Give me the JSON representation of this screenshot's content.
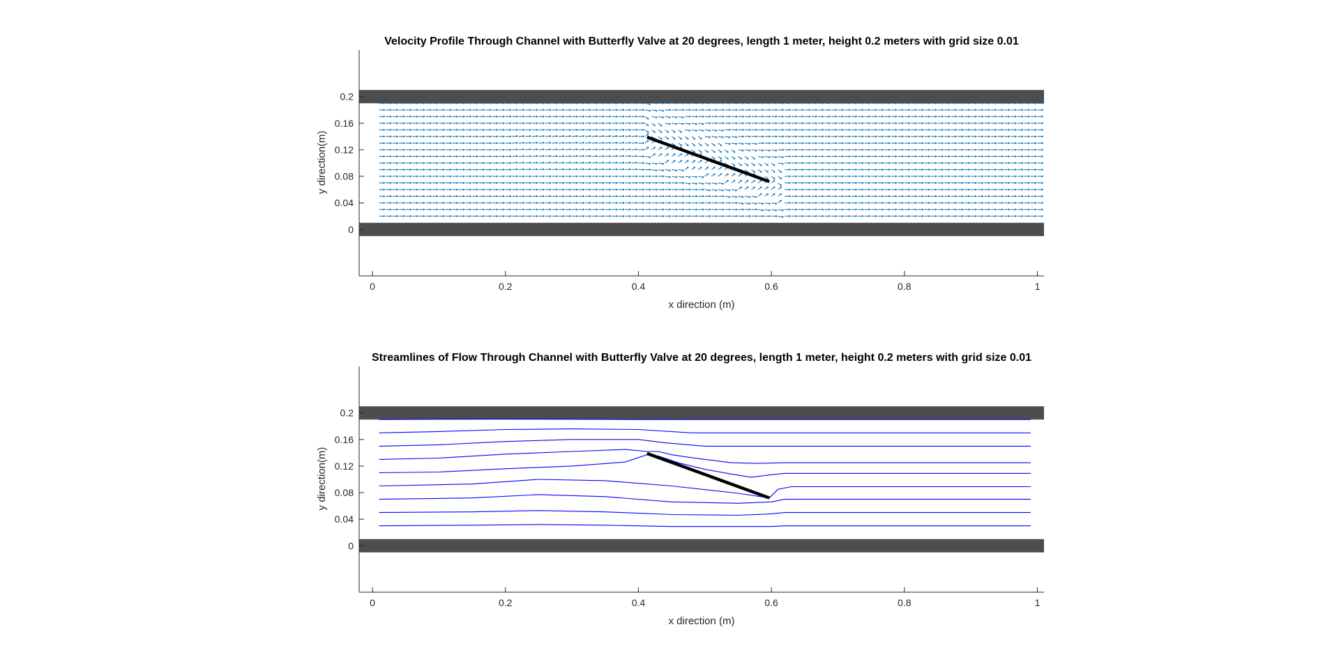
{
  "chart_data": [
    {
      "type": "quiver",
      "title": "Velocity Profile Through Channel with Butterfly Valve at 20 degrees, length 1 meter, height 0.2 meters with grid size 0.01",
      "xlabel": "x direction (m)",
      "ylabel": "y direction(m)",
      "xlim": [
        -0.02,
        1.01
      ],
      "ylim": [
        -0.07,
        0.27
      ],
      "xticks": [
        0,
        0.2,
        0.4,
        0.6,
        0.8,
        1
      ],
      "xtick_labels": [
        "0",
        "0.2",
        "0.4",
        "0.6",
        "0.8",
        "1"
      ],
      "yticks": [
        0,
        0.04,
        0.08,
        0.12,
        0.16,
        0.2
      ],
      "ytick_labels": [
        "0",
        "0.04",
        "0.08",
        "0.12",
        "0.16",
        "0.2"
      ],
      "walls": [
        {
          "y0": 0.19,
          "y1": 0.21
        },
        {
          "y0": -0.01,
          "y1": 0.01
        }
      ],
      "wall_color": "#4d4d4d",
      "valve": {
        "x": [
          0.413,
          0.597
        ],
        "y": [
          0.139,
          0.072
        ]
      },
      "valve_color": "#000000",
      "arrow_color": "#0072bd",
      "grid": {
        "x": [
          0.01,
          1.0
        ],
        "y": [
          0.02,
          0.19
        ],
        "step": 0.01
      }
    },
    {
      "type": "streamline",
      "title": "Streamlines of Flow Through Channel with Butterfly Valve at 20 degrees, length 1 meter, height 0.2 meters with grid size 0.01",
      "xlabel": "x direction (m)",
      "ylabel": "y direction(m)",
      "xlim": [
        -0.02,
        1.01
      ],
      "ylim": [
        -0.07,
        0.27
      ],
      "xticks": [
        0,
        0.2,
        0.4,
        0.6,
        0.8,
        1
      ],
      "xtick_labels": [
        "0",
        "0.2",
        "0.4",
        "0.6",
        "0.8",
        "1"
      ],
      "yticks": [
        0,
        0.04,
        0.08,
        0.12,
        0.16,
        0.2
      ],
      "ytick_labels": [
        "0",
        "0.04",
        "0.08",
        "0.12",
        "0.16",
        "0.2"
      ],
      "walls": [
        {
          "y0": 0.19,
          "y1": 0.21
        },
        {
          "y0": -0.01,
          "y1": 0.01
        }
      ],
      "wall_color": "#4d4d4d",
      "valve": {
        "x": [
          0.413,
          0.597
        ],
        "y": [
          0.139,
          0.072
        ]
      },
      "valve_color": "#000000",
      "line_color": "#0000ff",
      "streamlines": [
        {
          "x": [
            0.01,
            0.2,
            0.4,
            0.6,
            0.8,
            0.99
          ],
          "y": [
            0.19,
            0.191,
            0.19,
            0.19,
            0.19,
            0.19
          ]
        },
        {
          "x": [
            0.01,
            0.1,
            0.2,
            0.3,
            0.4,
            0.48,
            0.6,
            0.8,
            0.99
          ],
          "y": [
            0.17,
            0.172,
            0.175,
            0.176,
            0.175,
            0.17,
            0.17,
            0.17,
            0.17
          ]
        },
        {
          "x": [
            0.01,
            0.1,
            0.2,
            0.3,
            0.4,
            0.44,
            0.5,
            0.6,
            0.8,
            0.99
          ],
          "y": [
            0.15,
            0.152,
            0.157,
            0.16,
            0.16,
            0.155,
            0.15,
            0.15,
            0.15,
            0.15
          ]
        },
        {
          "x": [
            0.01,
            0.1,
            0.2,
            0.3,
            0.38,
            0.413,
            0.43,
            0.45,
            0.47,
            0.5,
            0.54,
            0.58,
            0.62,
            0.8,
            0.99
          ],
          "y": [
            0.13,
            0.132,
            0.138,
            0.142,
            0.145,
            0.142,
            0.142,
            0.137,
            0.134,
            0.13,
            0.125,
            0.124,
            0.125,
            0.125,
            0.125
          ]
        },
        {
          "x": [
            0.01,
            0.1,
            0.2,
            0.3,
            0.38,
            0.413,
            0.43,
            0.46,
            0.5,
            0.54,
            0.57,
            0.6,
            0.62,
            0.8,
            0.99
          ],
          "y": [
            0.11,
            0.111,
            0.116,
            0.12,
            0.126,
            0.137,
            0.135,
            0.125,
            0.115,
            0.108,
            0.103,
            0.107,
            0.109,
            0.109,
            0.109
          ]
        },
        {
          "x": [
            0.01,
            0.15,
            0.25,
            0.35,
            0.45,
            0.55,
            0.597,
            0.61,
            0.63,
            0.8,
            0.99
          ],
          "y": [
            0.09,
            0.093,
            0.1,
            0.098,
            0.09,
            0.079,
            0.072,
            0.085,
            0.089,
            0.089,
            0.089
          ]
        },
        {
          "x": [
            0.01,
            0.15,
            0.25,
            0.35,
            0.45,
            0.55,
            0.6,
            0.62,
            0.8,
            0.99
          ],
          "y": [
            0.07,
            0.072,
            0.077,
            0.074,
            0.066,
            0.064,
            0.066,
            0.07,
            0.07,
            0.07
          ]
        },
        {
          "x": [
            0.01,
            0.15,
            0.25,
            0.35,
            0.45,
            0.55,
            0.6,
            0.62,
            0.8,
            0.99
          ],
          "y": [
            0.05,
            0.051,
            0.053,
            0.051,
            0.047,
            0.046,
            0.048,
            0.05,
            0.05,
            0.05
          ]
        },
        {
          "x": [
            0.01,
            0.15,
            0.25,
            0.35,
            0.45,
            0.55,
            0.6,
            0.62,
            0.8,
            0.99
          ],
          "y": [
            0.03,
            0.031,
            0.032,
            0.031,
            0.029,
            0.029,
            0.029,
            0.03,
            0.03,
            0.03
          ]
        }
      ]
    }
  ]
}
